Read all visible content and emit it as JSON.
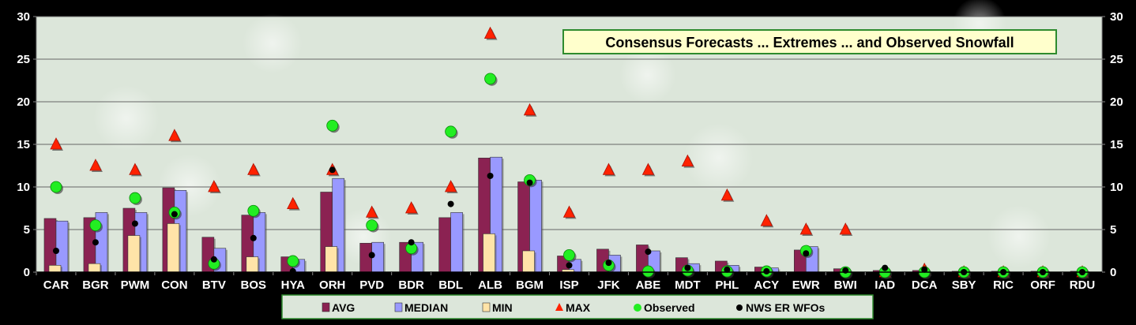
{
  "chart_data": {
    "type": "bar",
    "title": "Consensus Forecasts ... Extremes ... and Observed Snowfall",
    "xlabel": "",
    "ylabel": "",
    "ylim": [
      0,
      30
    ],
    "yticks": [
      0,
      5,
      10,
      15,
      20,
      25,
      30
    ],
    "grid": true,
    "legend_position": "bottom-center",
    "categories": [
      "CAR",
      "BGR",
      "PWM",
      "CON",
      "BTV",
      "BOS",
      "HYA",
      "ORH",
      "PVD",
      "BDR",
      "BDL",
      "ALB",
      "BGM",
      "ISP",
      "JFK",
      "ABE",
      "MDT",
      "PHL",
      "ACY",
      "EWR",
      "BWI",
      "IAD",
      "DCA",
      "SBY",
      "RIC",
      "ORF",
      "RDU"
    ],
    "series": [
      {
        "name": "AVG",
        "kind": "bar",
        "color": "#8B2252",
        "values": [
          6.3,
          6.4,
          7.5,
          9.9,
          4.1,
          6.7,
          1.8,
          9.4,
          3.4,
          3.5,
          6.4,
          13.4,
          10.6,
          1.9,
          2.7,
          3.2,
          1.7,
          1.3,
          0.6,
          2.6,
          0.4,
          0.2,
          0.2,
          0.1,
          0.1,
          0.1,
          0.1
        ]
      },
      {
        "name": "MEDIAN",
        "kind": "bar",
        "color": "#9999FF",
        "values": [
          6.0,
          7.0,
          7.0,
          9.6,
          2.8,
          7.0,
          1.5,
          11.0,
          3.5,
          3.5,
          7.0,
          13.5,
          10.8,
          1.5,
          2.0,
          2.5,
          1.0,
          0.8,
          0.5,
          3.0,
          0.0,
          0.0,
          0.0,
          0.0,
          0.0,
          0.0,
          0.0
        ]
      },
      {
        "name": "MIN",
        "kind": "bar",
        "color": "#FFE4A8",
        "values": [
          0.8,
          1.0,
          4.3,
          5.7,
          0.0,
          1.8,
          0.0,
          3.0,
          0.0,
          0.0,
          0.0,
          4.5,
          2.5,
          0.3,
          0.0,
          0.0,
          0.0,
          0.0,
          0.0,
          0.0,
          0.0,
          0.0,
          0.0,
          0.0,
          0.0,
          0.0,
          0.0
        ]
      },
      {
        "name": "MAX",
        "kind": "marker",
        "marker": "triangle",
        "color": "#FF2200",
        "values": [
          15,
          12.5,
          12,
          16,
          10,
          12,
          8,
          12,
          7,
          7.5,
          10,
          28,
          19,
          7,
          12,
          12,
          13,
          9,
          6,
          5,
          5,
          0,
          0.3,
          0,
          0,
          0,
          0
        ]
      },
      {
        "name": "Observed",
        "kind": "marker",
        "marker": "circle",
        "color": "#22EE22",
        "values": [
          10,
          5.5,
          8.7,
          7,
          1,
          7.2,
          1.3,
          17.2,
          5.5,
          2.8,
          16.5,
          22.7,
          10.8,
          2,
          0.8,
          0.1,
          0.2,
          0.1,
          0.1,
          2.5,
          0,
          0,
          0,
          0,
          0,
          0,
          0
        ]
      },
      {
        "name": "NWS ER WFOs",
        "kind": "marker",
        "marker": "dot",
        "color": "#000000",
        "values": [
          2.5,
          3.5,
          5.7,
          6.8,
          1.5,
          4,
          0.1,
          12,
          2,
          3.5,
          8,
          11.3,
          10.5,
          0.8,
          1.1,
          2.4,
          0.5,
          0.3,
          0.1,
          2.2,
          0.2,
          0.5,
          0.3,
          0,
          0,
          0,
          0
        ]
      }
    ]
  },
  "colors": {
    "page_background": "#000000",
    "plot_background": "#DCE6DA",
    "gridline": "#666666",
    "title_box_fill": "#FFFFCC",
    "title_box_border": "#2E8B2E"
  }
}
